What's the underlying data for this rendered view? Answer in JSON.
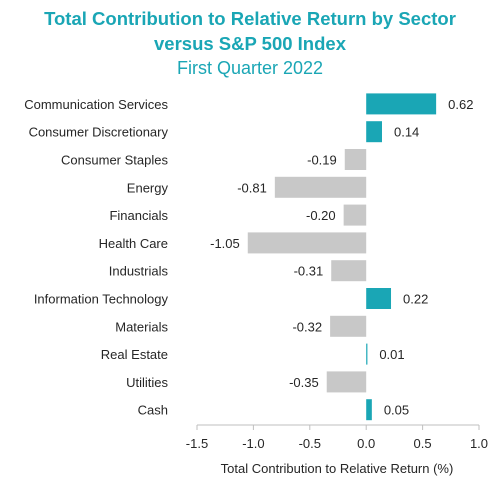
{
  "chart_data": {
    "type": "bar",
    "orientation": "horizontal",
    "title": "Total Contribution to Relative Return by Sector",
    "title_line2": "versus S&P 500 Index",
    "subtitle": "First Quarter 2022",
    "xlabel": "Total Contribution to Relative Return (%)",
    "xlim": [
      -1.5,
      1.0
    ],
    "xticks": [
      -1.5,
      -1.0,
      -0.5,
      0.0,
      0.5,
      1.0
    ],
    "xtick_labels": [
      "-1.5",
      "-1.0",
      "-0.5",
      "0.0",
      "0.5",
      "1.0"
    ],
    "categories": [
      "Communication Services",
      "Consumer Discretionary",
      "Consumer Staples",
      "Energy",
      "Financials",
      "Health Care",
      "Industrials",
      "Information Technology",
      "Materials",
      "Real Estate",
      "Utilities",
      "Cash"
    ],
    "values": [
      0.62,
      0.14,
      -0.19,
      -0.81,
      -0.2,
      -1.05,
      -0.31,
      0.22,
      -0.32,
      0.01,
      -0.35,
      0.05
    ],
    "value_labels": [
      "0.62",
      "0.14",
      "-0.19",
      "-0.81",
      "-0.20",
      "-1.05",
      "-0.31",
      "0.22",
      "-0.32",
      "0.01",
      "-0.35",
      "0.05"
    ],
    "colors": {
      "positive": "#1aa6b5",
      "negative": "#c8c8c8",
      "title": "#1aa6b5"
    },
    "grid": false,
    "legend": "none"
  }
}
